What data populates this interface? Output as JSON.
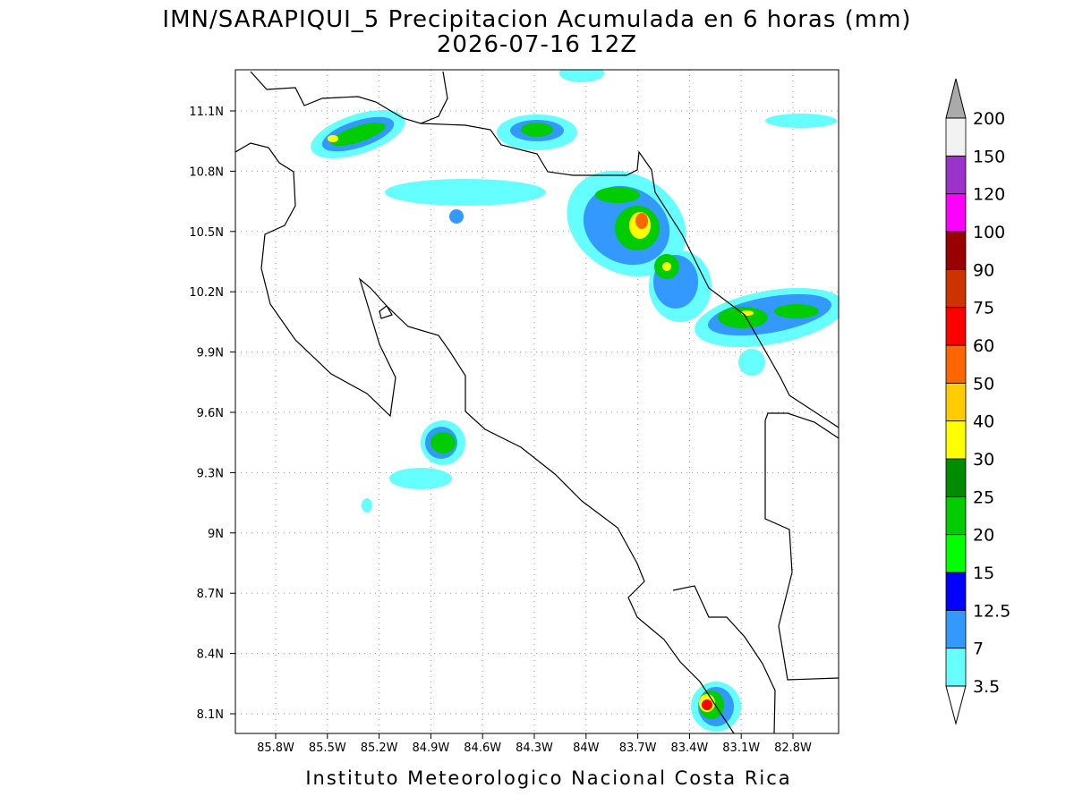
{
  "map": {
    "title": "IMN/SARAPIQUI_5 Precipitacion Acumulada en 6 horas (mm)",
    "subtitle": "2026-07-16 12Z",
    "xticks": [
      "85.8W",
      "85.5W",
      "85.2W",
      "84.9W",
      "84.6W",
      "84.3W",
      "84W",
      "83.7W",
      "83.4W",
      "83.1W",
      "82.8W"
    ],
    "yticks": [
      "11.1N",
      "10.8N",
      "10.5N",
      "10.2N",
      "9.9N",
      "9.6N",
      "9.3N",
      "9N",
      "8.7N",
      "8.4N",
      "8.1N"
    ],
    "footer": "Instituto Meteorologico Nacional Costa Rica",
    "colorbar": {
      "levels": [
        3.5,
        7,
        12.5,
        15,
        20,
        25,
        30,
        40,
        50,
        60,
        75,
        90,
        100,
        120,
        150,
        200
      ],
      "colors": [
        "#66ffff",
        "#3399ff",
        "#0000ff",
        "#00ff00",
        "#00cc00",
        "#008c00",
        "#ffff00",
        "#ffcc00",
        "#ff6600",
        "#ff0000",
        "#cc3300",
        "#990000",
        "#ff00ff",
        "#9933cc",
        "#f2f2f2"
      ],
      "under_color": "#ffffff",
      "over_color": "#aaaaaa"
    }
  }
}
